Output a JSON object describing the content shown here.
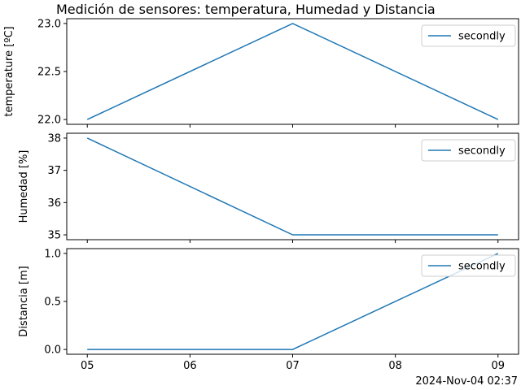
{
  "title": "Medición de sensores: temperatura, Humedad y Distancia",
  "footer_timestamp": "2024-Nov-04 02:37",
  "chart_data": {
    "type": "line",
    "title": "Medición de sensores: temperatura, Humedad y Distancia",
    "shared_x_axis": {
      "tick_labels": [
        "05",
        "06",
        "07",
        "08",
        "09"
      ],
      "xlim": [
        4.8,
        9.2
      ]
    },
    "charts": [
      {
        "type": "line",
        "ylabel": "temperature [ºC]",
        "x": [
          5,
          7,
          9
        ],
        "y": [
          22.0,
          23.0,
          22.0
        ],
        "ylim": [
          21.95,
          23.05
        ],
        "yticks": [
          22.0,
          22.5,
          23.0
        ],
        "ytick_labels": [
          "22.0",
          "22.5",
          "23.0"
        ],
        "series": [
          {
            "name": "secondly",
            "values": [
              22.0,
              23.0,
              22.0
            ]
          }
        ],
        "legend_placement": "top-right",
        "grid": false,
        "x_tick_labels_visible": false
      },
      {
        "type": "line",
        "ylabel": "Humedad [%]",
        "x": [
          5,
          7,
          9
        ],
        "y": [
          38,
          35,
          35
        ],
        "ylim": [
          34.85,
          38.15
        ],
        "yticks": [
          35,
          36,
          37,
          38
        ],
        "ytick_labels": [
          "35",
          "36",
          "37",
          "38"
        ],
        "series": [
          {
            "name": "secondly",
            "values": [
              38,
              35,
              35
            ]
          }
        ],
        "legend_placement": "top-right",
        "grid": false,
        "x_tick_labels_visible": false
      },
      {
        "type": "line",
        "ylabel": "Distancia [m]",
        "x": [
          5,
          7,
          9
        ],
        "y": [
          0.0,
          0.0,
          1.0
        ],
        "ylim": [
          -0.05,
          1.05
        ],
        "yticks": [
          0.0,
          0.5,
          1.0
        ],
        "ytick_labels": [
          "0.0",
          "0.5",
          "1.0"
        ],
        "series": [
          {
            "name": "secondly",
            "values": [
              0.0,
              0.0,
              1.0
            ]
          }
        ],
        "legend_placement": "top-right",
        "grid": false,
        "x_tick_labels_visible": true
      }
    ]
  },
  "colors": {
    "series": "#1f77b4",
    "axes": "#000000",
    "legend_border": "#cccccc",
    "background": "#ffffff"
  }
}
